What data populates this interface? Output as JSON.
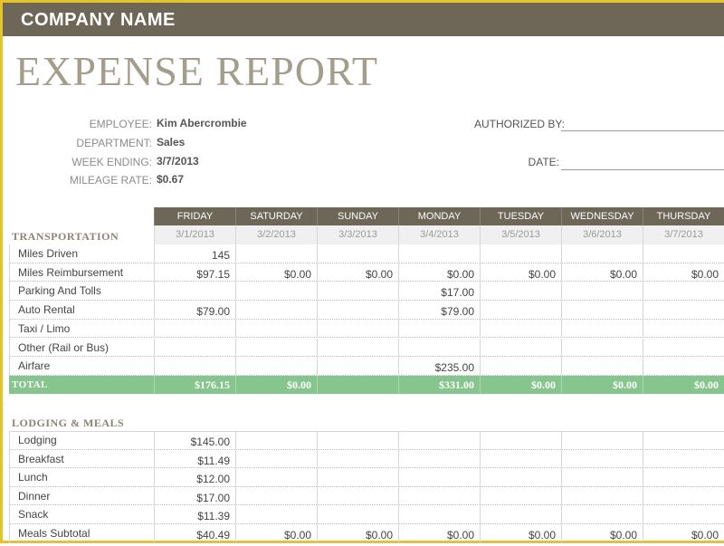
{
  "header": {
    "company": "COMPANY NAME",
    "title": "EXPENSE REPORT"
  },
  "info": {
    "employee_label": "EMPLOYEE:",
    "employee": "Kim Abercrombie",
    "department_label": "DEPARTMENT:",
    "department": "Sales",
    "week_ending_label": "WEEK ENDING:",
    "week_ending": "3/7/2013",
    "mileage_rate_label": "MILEAGE RATE:",
    "mileage_rate": "$0.67",
    "authorized_by_label": "AUTHORIZED BY:",
    "date_label": "DATE:"
  },
  "days": [
    "FRIDAY",
    "SATURDAY",
    "SUNDAY",
    "MONDAY",
    "TUESDAY",
    "WEDNESDAY",
    "THURSDAY"
  ],
  "dates": [
    "3/1/2013",
    "3/2/2013",
    "3/3/2013",
    "3/4/2013",
    "3/5/2013",
    "3/6/2013",
    "3/7/2013"
  ],
  "transportation": {
    "label": "TRANSPORTATION",
    "rows": [
      {
        "label": "Miles Driven",
        "values": [
          "145",
          "",
          "",
          "",
          "",
          "",
          ""
        ]
      },
      {
        "label": "Miles Reimbursement",
        "values": [
          "$97.15",
          "$0.00",
          "$0.00",
          "$0.00",
          "$0.00",
          "$0.00",
          "$0.00"
        ]
      },
      {
        "label": "Parking And Tolls",
        "values": [
          "",
          "",
          "",
          "$17.00",
          "",
          "",
          ""
        ]
      },
      {
        "label": "Auto Rental",
        "values": [
          "$79.00",
          "",
          "",
          "$79.00",
          "",
          "",
          ""
        ]
      },
      {
        "label": "Taxi / Limo",
        "values": [
          "",
          "",
          "",
          "",
          "",
          "",
          ""
        ]
      },
      {
        "label": "Other (Rail or Bus)",
        "values": [
          "",
          "",
          "",
          "",
          "",
          "",
          ""
        ]
      },
      {
        "label": "Airfare",
        "values": [
          "",
          "",
          "",
          "$235.00",
          "",
          "",
          ""
        ]
      }
    ],
    "total": {
      "label": "TOTAL",
      "values": [
        "$176.15",
        "$0.00",
        "",
        "$331.00",
        "$0.00",
        "$0.00",
        "$0.00"
      ]
    }
  },
  "lodging": {
    "label": "LODGING & MEALS",
    "rows": [
      {
        "label": "Lodging",
        "values": [
          "$145.00",
          "",
          "",
          "",
          "",
          "",
          ""
        ]
      },
      {
        "label": "Breakfast",
        "values": [
          "$11.49",
          "",
          "",
          "",
          "",
          "",
          ""
        ]
      },
      {
        "label": "Lunch",
        "values": [
          "$12.00",
          "",
          "",
          "",
          "",
          "",
          ""
        ]
      },
      {
        "label": "Dinner",
        "values": [
          "$17.00",
          "",
          "",
          "",
          "",
          "",
          ""
        ]
      },
      {
        "label": "Snack",
        "values": [
          "$11.39",
          "",
          "",
          "",
          "",
          "",
          ""
        ]
      },
      {
        "label": "Meals Subtotal",
        "values": [
          "$40.49",
          "$0.00",
          "$0.00",
          "$0.00",
          "$0.00",
          "$0.00",
          "$0.00"
        ]
      }
    ]
  }
}
